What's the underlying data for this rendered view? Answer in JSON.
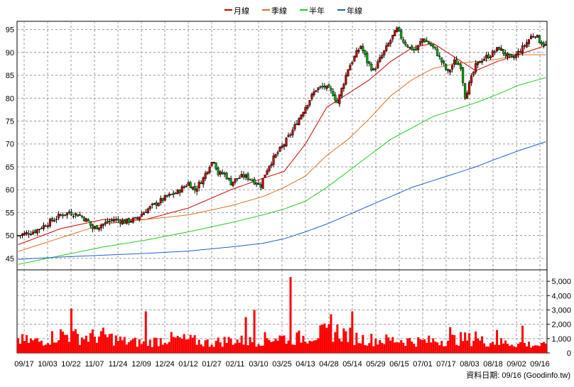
{
  "legend": [
    {
      "name": "月線",
      "color": "#cc0000"
    },
    {
      "name": "季線",
      "color": "#e07020"
    },
    {
      "name": "半年",
      "color": "#22cc22"
    },
    {
      "name": "年線",
      "color": "#1f5fcf"
    }
  ],
  "footer": {
    "text": "資料日期: 09/16  (Goodinfo.tw)"
  },
  "chart_data": {
    "type": "candlestick",
    "up_color": "#cc0000",
    "down_color": "#00aa00",
    "price_axis": {
      "ticks": [
        45,
        50,
        55,
        60,
        65,
        70,
        75,
        80,
        85,
        90,
        95
      ],
      "ylim": [
        42.5,
        96.8
      ],
      "side": "left"
    },
    "volume_axis": {
      "ticks": [
        0,
        1000,
        2000,
        3000,
        4000,
        5000
      ],
      "tick_labels": [
        "0",
        "1,000",
        "2,000",
        "3,000",
        "4,000",
        "5,000"
      ],
      "ylim": [
        0,
        5800
      ],
      "side": "right",
      "bar_color": "#ff0000"
    },
    "x_tick_labels": [
      "09/17",
      "10/03",
      "10/22",
      "11/07",
      "11/24",
      "12/09",
      "12/24",
      "01/12",
      "01/27",
      "02/11",
      "03/10",
      "03/25",
      "04/13",
      "04/28",
      "05/14",
      "05/29",
      "06/15",
      "07/01",
      "07/17",
      "08/03",
      "08/18",
      "09/02",
      "09/16"
    ],
    "grid": true,
    "price_path": [
      [
        0,
        50.0
      ],
      [
        8,
        51.0
      ],
      [
        15,
        53.0
      ],
      [
        20,
        54.5
      ],
      [
        24,
        55.0
      ],
      [
        29,
        54.5
      ],
      [
        33,
        53.0
      ],
      [
        35,
        51.5
      ],
      [
        40,
        52.5
      ],
      [
        45,
        53.5
      ],
      [
        50,
        53.0
      ],
      [
        55,
        53.5
      ],
      [
        60,
        55.5
      ],
      [
        65,
        57.0
      ],
      [
        70,
        58.5
      ],
      [
        75,
        59.5
      ],
      [
        80,
        61.5
      ],
      [
        83,
        60.0
      ],
      [
        87,
        62.5
      ],
      [
        90,
        65.5
      ],
      [
        92,
        66.5
      ],
      [
        94,
        63.5
      ],
      [
        97,
        63.5
      ],
      [
        100,
        61.5
      ],
      [
        103,
        62.5
      ],
      [
        106,
        63.0
      ],
      [
        109,
        62.5
      ],
      [
        112,
        61.5
      ],
      [
        114,
        61.0
      ],
      [
        116,
        63.5
      ],
      [
        118,
        65.5
      ],
      [
        121,
        67.5
      ],
      [
        125,
        70.0
      ],
      [
        129,
        73.0
      ],
      [
        133,
        76.5
      ],
      [
        136,
        79.0
      ],
      [
        140,
        82.0
      ],
      [
        144,
        82.5
      ],
      [
        148,
        81.0
      ],
      [
        150,
        79.0
      ],
      [
        152,
        82.0
      ],
      [
        155,
        86.5
      ],
      [
        158,
        89.0
      ],
      [
        161,
        91.5
      ],
      [
        164,
        88.0
      ],
      [
        167,
        86.0
      ],
      [
        170,
        88.5
      ],
      [
        173,
        91.0
      ],
      [
        176,
        93.5
      ],
      [
        178,
        95.0
      ],
      [
        181,
        92.5
      ],
      [
        184,
        91.0
      ],
      [
        187,
        90.5
      ],
      [
        190,
        93.0
      ],
      [
        193,
        92.0
      ],
      [
        196,
        90.5
      ],
      [
        199,
        88.0
      ],
      [
        202,
        85.5
      ],
      [
        205,
        88.0
      ],
      [
        208,
        87.0
      ],
      [
        210,
        80.5
      ],
      [
        212,
        83.0
      ],
      [
        215,
        87.0
      ],
      [
        218,
        88.5
      ],
      [
        222,
        89.5
      ],
      [
        226,
        91.0
      ],
      [
        229,
        89.5
      ],
      [
        232,
        88.5
      ],
      [
        235,
        90.0
      ],
      [
        238,
        91.5
      ],
      [
        241,
        93.5
      ],
      [
        243,
        94.0
      ],
      [
        245,
        92.5
      ],
      [
        248,
        91.5
      ]
    ],
    "moving_averages": [
      {
        "name": "月線",
        "color": "#cc0000",
        "points": [
          [
            0,
            48.0
          ],
          [
            20,
            51.5
          ],
          [
            40,
            53.5
          ],
          [
            60,
            53.5
          ],
          [
            80,
            56.0
          ],
          [
            100,
            60.0
          ],
          [
            115,
            62.5
          ],
          [
            125,
            64.0
          ],
          [
            135,
            70.0
          ],
          [
            145,
            78.0
          ],
          [
            155,
            81.0
          ],
          [
            165,
            84.0
          ],
          [
            175,
            88.0
          ],
          [
            185,
            91.0
          ],
          [
            195,
            92.0
          ],
          [
            205,
            89.0
          ],
          [
            215,
            86.0
          ],
          [
            225,
            88.0
          ],
          [
            235,
            89.5
          ],
          [
            248,
            91.5
          ]
        ]
      },
      {
        "name": "季線",
        "color": "#e07020",
        "points": [
          [
            0,
            46.5
          ],
          [
            20,
            49.5
          ],
          [
            40,
            52.5
          ],
          [
            60,
            53.5
          ],
          [
            80,
            54.5
          ],
          [
            100,
            56.5
          ],
          [
            115,
            58.5
          ],
          [
            125,
            60.5
          ],
          [
            135,
            63.0
          ],
          [
            145,
            67.5
          ],
          [
            155,
            71.0
          ],
          [
            165,
            75.5
          ],
          [
            175,
            80.5
          ],
          [
            185,
            84.0
          ],
          [
            195,
            86.5
          ],
          [
            205,
            87.5
          ],
          [
            215,
            88.0
          ],
          [
            225,
            88.5
          ],
          [
            235,
            89.5
          ],
          [
            248,
            89.5
          ]
        ]
      },
      {
        "name": "半年",
        "color": "#22cc22",
        "points": [
          [
            0,
            43.7
          ],
          [
            20,
            45.6
          ],
          [
            40,
            47.5
          ],
          [
            60,
            49.0
          ],
          [
            80,
            50.8
          ],
          [
            100,
            52.8
          ],
          [
            115,
            54.5
          ],
          [
            125,
            55.8
          ],
          [
            135,
            57.5
          ],
          [
            145,
            60.5
          ],
          [
            155,
            64.0
          ],
          [
            165,
            67.5
          ],
          [
            175,
            71.0
          ],
          [
            185,
            73.5
          ],
          [
            195,
            76.0
          ],
          [
            205,
            77.5
          ],
          [
            215,
            79.0
          ],
          [
            225,
            80.8
          ],
          [
            235,
            82.8
          ],
          [
            248,
            84.5
          ]
        ]
      },
      {
        "name": "年線",
        "color": "#1f5fcf",
        "points": [
          [
            0,
            44.8
          ],
          [
            20,
            45.3
          ],
          [
            40,
            45.7
          ],
          [
            60,
            46.1
          ],
          [
            80,
            46.6
          ],
          [
            100,
            47.5
          ],
          [
            115,
            48.3
          ],
          [
            125,
            49.3
          ],
          [
            135,
            50.8
          ],
          [
            145,
            52.5
          ],
          [
            155,
            54.5
          ],
          [
            165,
            56.5
          ],
          [
            175,
            58.5
          ],
          [
            185,
            60.5
          ],
          [
            195,
            62.0
          ],
          [
            205,
            63.5
          ],
          [
            215,
            65.0
          ],
          [
            225,
            66.8
          ],
          [
            235,
            68.5
          ],
          [
            248,
            70.5
          ]
        ]
      }
    ],
    "volume_profile": [
      [
        0,
        900
      ],
      [
        10,
        800
      ],
      [
        20,
        1300
      ],
      [
        30,
        1100
      ],
      [
        40,
        1200
      ],
      [
        50,
        800
      ],
      [
        60,
        700
      ],
      [
        70,
        1000
      ],
      [
        80,
        900
      ],
      [
        90,
        700
      ],
      [
        100,
        900
      ],
      [
        110,
        800
      ],
      [
        120,
        1100
      ],
      [
        130,
        1000
      ],
      [
        140,
        1300
      ],
      [
        150,
        1500
      ],
      [
        160,
        1000
      ],
      [
        170,
        900
      ],
      [
        180,
        900
      ],
      [
        190,
        800
      ],
      [
        200,
        900
      ],
      [
        210,
        1000
      ],
      [
        220,
        800
      ],
      [
        230,
        700
      ],
      [
        240,
        600
      ],
      [
        248,
        500
      ]
    ],
    "volume_spikes": [
      [
        25,
        3100
      ],
      [
        60,
        2900
      ],
      [
        107,
        2500
      ],
      [
        111,
        3000
      ],
      [
        128,
        5300
      ],
      [
        147,
        2700
      ],
      [
        157,
        2900
      ],
      [
        203,
        1800
      ],
      [
        215,
        1500
      ],
      [
        225,
        1600
      ],
      [
        237,
        1900
      ]
    ]
  }
}
